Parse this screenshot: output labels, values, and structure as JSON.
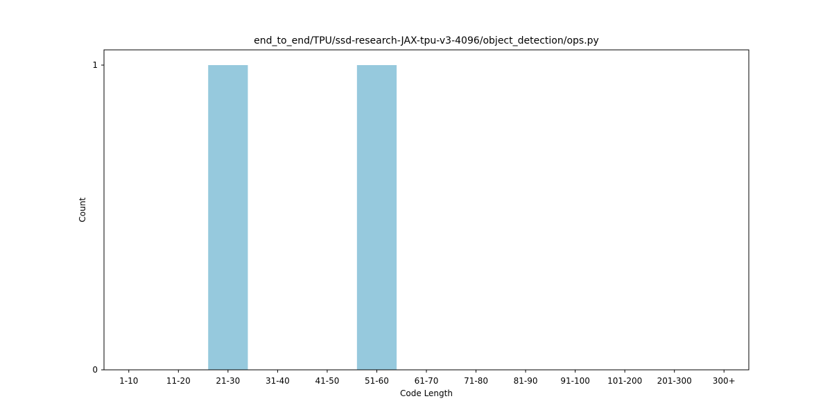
{
  "chart_data": {
    "type": "bar",
    "title": "end_to_end/TPU/ssd-research-JAX-tpu-v3-4096/object_detection/ops.py",
    "xlabel": "Code Length",
    "ylabel": "Count",
    "categories": [
      "1-10",
      "11-20",
      "21-30",
      "31-40",
      "41-50",
      "51-60",
      "61-70",
      "71-80",
      "81-90",
      "91-100",
      "101-200",
      "201-300",
      "300+"
    ],
    "values": [
      0,
      0,
      1,
      0,
      0,
      1,
      0,
      0,
      0,
      0,
      0,
      0,
      0
    ],
    "yticks": [
      0,
      1
    ],
    "ylim": [
      0,
      1.05
    ],
    "bar_color": "#96c9dd",
    "grid": false
  }
}
